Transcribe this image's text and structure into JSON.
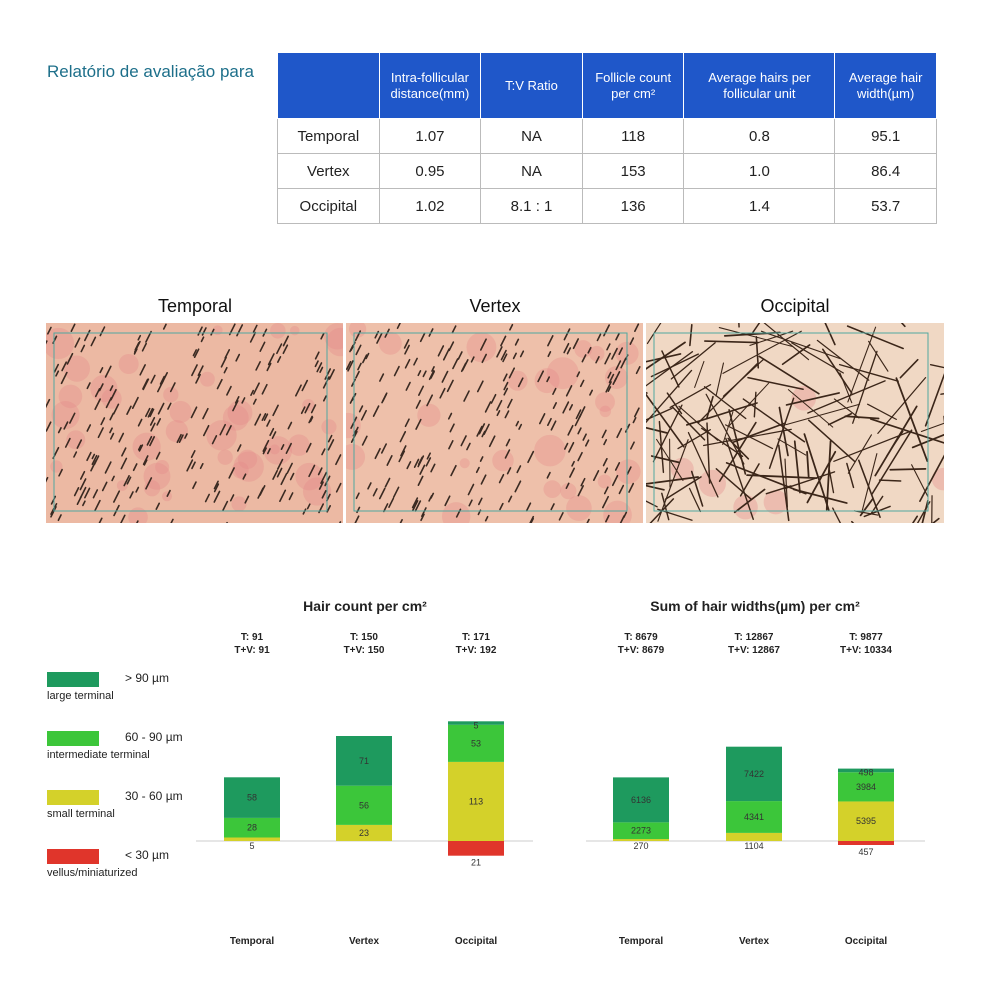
{
  "report": {
    "title": "Relatório de avaliação para"
  },
  "table": {
    "headers": [
      "",
      "Intra-follicular distance(mm)",
      "T:V Ratio",
      "Follicle count per cm²",
      "Average hairs per follicular unit",
      "Average hair width(µm)"
    ],
    "rows": [
      [
        "Temporal",
        "1.07",
        "NA",
        "118",
        "0.8",
        "95.1"
      ],
      [
        "Vertex",
        "0.95",
        "NA",
        "153",
        "1.0",
        "86.4"
      ],
      [
        "Occipital",
        "1.02",
        "8.1 : 1",
        "136",
        "1.4",
        "53.7"
      ]
    ]
  },
  "photos": [
    {
      "label": "Temporal"
    },
    {
      "label": "Vertex"
    },
    {
      "label": "Occipital"
    }
  ],
  "legend": [
    {
      "range": "> 90 µm",
      "desc": "large terminal",
      "color": "#1e9a5e"
    },
    {
      "range": "60 - 90 µm",
      "desc": "intermediate terminal",
      "color": "#3cc63a"
    },
    {
      "range": "30 - 60 µm",
      "desc": "small terminal",
      "color": "#d4d12a"
    },
    {
      "range": "< 30 µm",
      "desc": "vellus/miniaturized",
      "color": "#e0352b"
    }
  ],
  "colors": {
    "large": "#1e9a5e",
    "intermediate": "#3cc63a",
    "small": "#d4d12a",
    "vellus": "#e0352b",
    "header": "#1f57c9",
    "title": "#1d6f8a"
  },
  "chart_data": [
    {
      "type": "bar",
      "stacked": true,
      "title": "Hair count per cm²",
      "categories": [
        "Temporal",
        "Vertex",
        "Occipital"
      ],
      "top_labels": [
        {
          "t": "T: 91",
          "tv": "T+V: 91"
        },
        {
          "t": "T: 150",
          "tv": "T+V: 150"
        },
        {
          "t": "T: 171",
          "tv": "T+V: 192"
        }
      ],
      "series": [
        {
          "name": "large terminal",
          "values": [
            58,
            71,
            5
          ]
        },
        {
          "name": "intermediate terminal",
          "values": [
            28,
            56,
            53
          ]
        },
        {
          "name": "small terminal",
          "values": [
            5,
            23,
            113
          ]
        },
        {
          "name": "vellus/miniaturized",
          "values": [
            0,
            0,
            21
          ]
        }
      ]
    },
    {
      "type": "bar",
      "stacked": true,
      "title": "Sum of hair widths(µm) per cm²",
      "categories": [
        "Temporal",
        "Vertex",
        "Occipital"
      ],
      "top_labels": [
        {
          "t": "T: 8679",
          "tv": "T+V: 8679"
        },
        {
          "t": "T: 12867",
          "tv": "T+V: 12867"
        },
        {
          "t": "T: 9877",
          "tv": "T+V: 10334"
        }
      ],
      "series": [
        {
          "name": "large terminal",
          "values": [
            6136,
            7422,
            498
          ]
        },
        {
          "name": "intermediate terminal",
          "values": [
            2273,
            4341,
            3984
          ]
        },
        {
          "name": "small terminal",
          "values": [
            270,
            1104,
            5395
          ]
        },
        {
          "name": "vellus/miniaturized",
          "values": [
            0,
            0,
            457
          ]
        }
      ]
    }
  ]
}
